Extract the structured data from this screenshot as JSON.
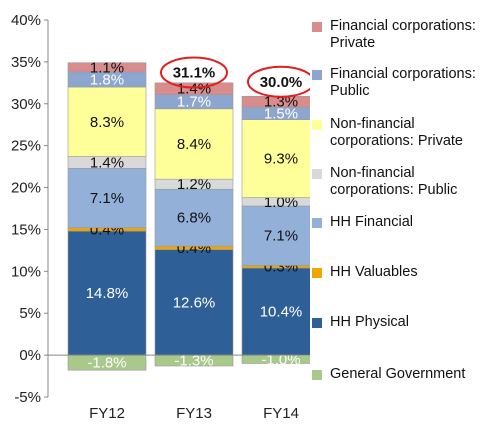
{
  "chart_data": {
    "type": "bar",
    "stacked": true,
    "categories": [
      "FY12",
      "FY13",
      "FY14"
    ],
    "ylim": [
      -5,
      40
    ],
    "yticks": [
      "-5%",
      "0%",
      "5%",
      "10%",
      "15%",
      "20%",
      "25%",
      "30%",
      "35%",
      "40%"
    ],
    "grid": false,
    "legend_position": "right",
    "series": [
      {
        "name": "General Government",
        "color": "#a9c98a",
        "values": [
          -1.8,
          -1.3,
          -1.0
        ],
        "labels": [
          "-1.8%",
          "-1.3%",
          "-1.0%"
        ],
        "label_color": "#ffffff"
      },
      {
        "name": "HH Physical",
        "color": "#2e5f96",
        "values": [
          14.8,
          12.6,
          10.4
        ],
        "labels": [
          "14.8%",
          "12.6%",
          "10.4%"
        ],
        "label_color": "#ffffff"
      },
      {
        "name": "HH Valuables",
        "color": "#f0a500",
        "values": [
          0.4,
          0.4,
          0.3
        ],
        "labels": [
          "0.4%",
          "0.4%",
          "0.3%"
        ],
        "label_color": "#111111"
      },
      {
        "name": "HH Financial",
        "color": "#93b0d8",
        "values": [
          7.1,
          6.8,
          7.1
        ],
        "labels": [
          "7.1%",
          "6.8%",
          "7.1%"
        ],
        "label_color": "#111111"
      },
      {
        "name": "Non-financial corporations: Public",
        "color": "#d9d9d9",
        "values": [
          1.4,
          1.2,
          1.0
        ],
        "labels": [
          "1.4%",
          "1.2%",
          "1.0%"
        ],
        "label_color": "#111111"
      },
      {
        "name": "Non-financial corporations: Private",
        "color": "#ffff99",
        "values": [
          8.3,
          8.4,
          9.3
        ],
        "labels": [
          "8.3%",
          "8.4%",
          "9.3%"
        ],
        "label_color": "#111111"
      },
      {
        "name": "Financial corporations: Public",
        "color": "#8da6cf",
        "values": [
          1.8,
          1.7,
          1.5
        ],
        "labels": [
          "1.8%",
          "1.7%",
          "1.5%"
        ],
        "label_color": "#ffffff"
      },
      {
        "name": "Financial corporations: Private",
        "color": "#d98c8c",
        "values": [
          1.1,
          1.4,
          1.3
        ],
        "labels": [
          "1.1%",
          "1.4%",
          "1.3%"
        ],
        "label_color": "#111111"
      }
    ],
    "totals": [
      {
        "category": "FY13",
        "label": "31.1%",
        "value": 31.1
      },
      {
        "category": "FY14",
        "label": "30.0%",
        "value": 30.0
      }
    ],
    "total_circle_color": "#e02020",
    "legend": [
      {
        "line1": "Financial corporations:",
        "line2": "Private",
        "color": "#d98c8c"
      },
      {
        "line1": "Financial corporations:",
        "line2": "Public",
        "color": "#8da6cf"
      },
      {
        "line1": "Non-financial",
        "line2": "corporations: Private",
        "color": "#ffff99"
      },
      {
        "line1": "Non-financial",
        "line2": "corporations: Public",
        "color": "#d9d9d9"
      },
      {
        "line1": "HH Financial",
        "line2": "",
        "color": "#93b0d8"
      },
      {
        "line1": "HH Valuables",
        "line2": "",
        "color": "#f0a500"
      },
      {
        "line1": "HH Physical",
        "line2": "",
        "color": "#2e5f96"
      },
      {
        "line1": "General Government",
        "line2": "",
        "color": "#a9c98a"
      }
    ]
  }
}
